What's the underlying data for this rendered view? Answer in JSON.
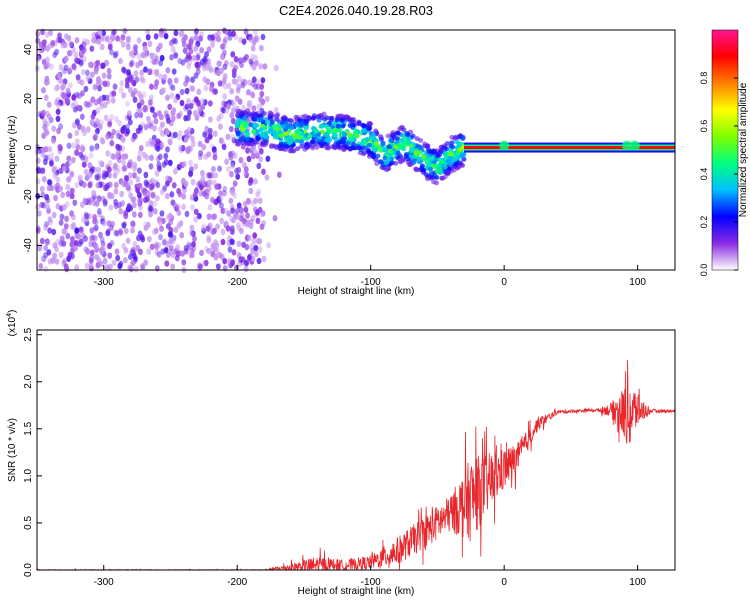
{
  "title": "C2E4.2026.040.19.28.R03",
  "chart_data": [
    {
      "type": "heatmap",
      "xlabel": "Height of straight line (km)",
      "ylabel": "Frequency (Hz)",
      "xlim": [
        -350,
        128
      ],
      "ylim": [
        -50,
        48
      ],
      "xticks": [
        -300,
        -200,
        -100,
        0,
        100
      ],
      "yticks": [
        -40,
        -20,
        0,
        20,
        40
      ],
      "colorbar": {
        "label": "Normalized spectral amplitude",
        "range": [
          0,
          1
        ],
        "ticks": [
          "0.0",
          "0.2",
          "0.4",
          "0.6",
          "0.8"
        ],
        "colors": [
          "#ffffff",
          "#8a2be2",
          "#0000ff",
          "#00bfff",
          "#00ff80",
          "#7fff00",
          "#ffff00",
          "#ff8000",
          "#ff0000",
          "#ff1493"
        ]
      },
      "noise_region_x": [
        -350,
        -180
      ],
      "signal_track": [
        {
          "x": -200,
          "f": 8
        },
        {
          "x": -180,
          "f": 8
        },
        {
          "x": -160,
          "f": 5
        },
        {
          "x": -140,
          "f": 7
        },
        {
          "x": -120,
          "f": 6
        },
        {
          "x": -100,
          "f": 3
        },
        {
          "x": -90,
          "f": -3
        },
        {
          "x": -75,
          "f": 2
        },
        {
          "x": -60,
          "f": -5
        },
        {
          "x": -50,
          "f": -8
        },
        {
          "x": -40,
          "f": -3
        },
        {
          "x": -30,
          "f": 0
        }
      ],
      "carrier_line": {
        "x_start": -30,
        "x_end": 128,
        "f": 0
      }
    },
    {
      "type": "line",
      "xlabel": "Height of straight line (km)",
      "ylabel": "SNR (10 * v/v)",
      "y_multiplier": "(x10",
      "y_multiplier_exp": "4",
      "y_multiplier_close": ")",
      "xlim": [
        -350,
        128
      ],
      "ylim": [
        0,
        2.55
      ],
      "xticks": [
        -300,
        -200,
        -100,
        0,
        100
      ],
      "yticks": [
        "0.0",
        "0.5",
        "1.0",
        "1.5",
        "2.0",
        "2.5"
      ],
      "series": [
        {
          "color": "#e8262b",
          "envelope": [
            {
              "x": -350,
              "mean": 0.0,
              "spread": 0.01
            },
            {
              "x": -180,
              "mean": 0.0,
              "spread": 0.01
            },
            {
              "x": -160,
              "mean": 0.03,
              "spread": 0.08
            },
            {
              "x": -140,
              "mean": 0.05,
              "spread": 0.2
            },
            {
              "x": -120,
              "mean": 0.05,
              "spread": 0.12
            },
            {
              "x": -100,
              "mean": 0.08,
              "spread": 0.15
            },
            {
              "x": -80,
              "mean": 0.2,
              "spread": 0.3
            },
            {
              "x": -60,
              "mean": 0.4,
              "spread": 0.35
            },
            {
              "x": -40,
              "mean": 0.6,
              "spread": 0.4
            },
            {
              "x": -25,
              "mean": 0.75,
              "spread": 0.9
            },
            {
              "x": -10,
              "mean": 0.95,
              "spread": 0.6
            },
            {
              "x": 10,
              "mean": 1.2,
              "spread": 0.3
            },
            {
              "x": 25,
              "mean": 1.55,
              "spread": 0.15
            },
            {
              "x": 40,
              "mean": 1.68,
              "spread": 0.04
            },
            {
              "x": 70,
              "mean": 1.7,
              "spread": 0.03
            },
            {
              "x": 80,
              "mean": 1.7,
              "spread": 0.15
            },
            {
              "x": 95,
              "mean": 1.65,
              "spread": 0.8
            },
            {
              "x": 100,
              "mean": 1.7,
              "spread": 0.35
            },
            {
              "x": 110,
              "mean": 1.69,
              "spread": 0.04
            },
            {
              "x": 128,
              "mean": 1.69,
              "spread": 0.03
            }
          ]
        }
      ]
    }
  ]
}
